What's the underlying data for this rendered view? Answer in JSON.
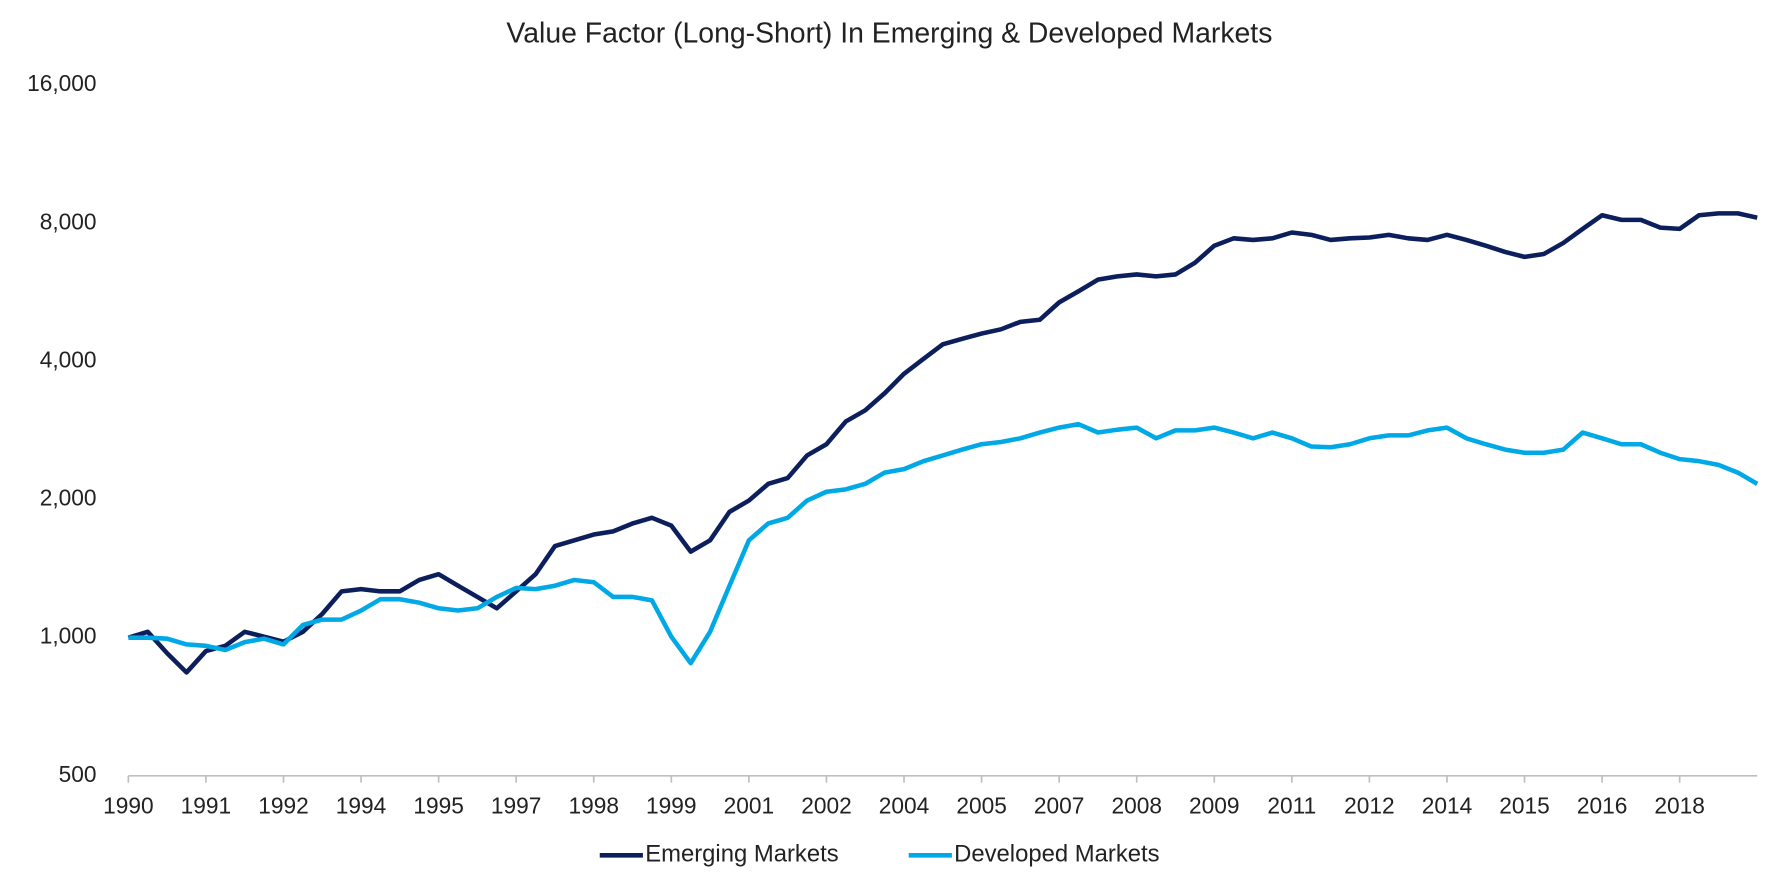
{
  "chart_data": {
    "type": "line",
    "title": "Value Factor (Long-Short) In Emerging & Developed Markets",
    "categories": [
      "1990",
      null,
      null,
      null,
      "1991",
      null,
      null,
      null,
      "1992",
      null,
      null,
      null,
      "1994",
      null,
      null,
      null,
      "1995",
      null,
      null,
      null,
      "1997",
      null,
      null,
      null,
      "1998",
      null,
      null,
      null,
      "1999",
      null,
      null,
      null,
      "2001",
      null,
      null,
      null,
      "2002",
      null,
      null,
      null,
      "2004",
      null,
      null,
      null,
      "2005",
      null,
      null,
      null,
      "2007",
      null,
      null,
      null,
      "2008",
      null,
      null,
      null,
      "2009",
      null,
      null,
      null,
      "2011",
      null,
      null,
      null,
      "2012",
      null,
      null,
      null,
      "2014",
      null,
      null,
      null,
      "2015",
      null,
      null,
      null,
      "2016",
      null,
      null,
      null,
      "2018",
      null,
      null,
      null,
      null
    ],
    "series": [
      {
        "name": "Emerging Markets",
        "color": "#0c1f5c",
        "values": [
          1000,
          1030,
          925,
          840,
          935,
          960,
          1030,
          1005,
          980,
          1030,
          1127,
          1262,
          1276,
          1262,
          1262,
          1336,
          1375,
          1298,
          1227,
          1159,
          1262,
          1375,
          1584,
          1630,
          1678,
          1705,
          1774,
          1825,
          1755,
          1540,
          1630,
          1880,
          1990,
          2164,
          2228,
          2496,
          2640,
          2960,
          3130,
          3410,
          3760,
          4050,
          4360,
          4480,
          4600,
          4700,
          4880,
          4930,
          5380,
          5690,
          6030,
          6130,
          6190,
          6130,
          6190,
          6560,
          7150,
          7420,
          7360,
          7420,
          7640,
          7550,
          7360,
          7420,
          7450,
          7550,
          7420,
          7360,
          7550,
          7360,
          7150,
          6930,
          6760,
          6860,
          7250,
          7780,
          8330,
          8140,
          8140,
          7830,
          7780,
          8330,
          8410,
          8410,
          8230
        ]
      },
      {
        "name": "Developed Markets",
        "color": "#00a9e6",
        "values": [
          1000,
          1000,
          995,
          967,
          960,
          940,
          978,
          995,
          967,
          1066,
          1095,
          1095,
          1146,
          1213,
          1213,
          1192,
          1159,
          1146,
          1159,
          1227,
          1284,
          1276,
          1298,
          1336,
          1321,
          1227,
          1227,
          1206,
          1005,
          880,
          1030,
          1298,
          1630,
          1774,
          1825,
          1990,
          2080,
          2105,
          2164,
          2290,
          2330,
          2425,
          2496,
          2570,
          2640,
          2670,
          2720,
          2800,
          2870,
          2920,
          2800,
          2840,
          2870,
          2720,
          2830,
          2830,
          2870,
          2800,
          2720,
          2800,
          2720,
          2610,
          2600,
          2640,
          2720,
          2760,
          2760,
          2830,
          2870,
          2720,
          2640,
          2570,
          2530,
          2530,
          2570,
          2800,
          2720,
          2640,
          2640,
          2530,
          2450,
          2425,
          2380,
          2290,
          2164
        ]
      }
    ],
    "log_y": true,
    "ylim": [
      500,
      16000
    ],
    "yticks": [
      500,
      {
        "value": 1000,
        "label": "1,000"
      },
      {
        "value": 2000,
        "label": "2,000"
      },
      {
        "value": 4000,
        "label": "4,000"
      },
      {
        "value": 8000,
        "label": "8,000"
      },
      {
        "value": 16000,
        "label": "16,000"
      }
    ],
    "grid": false,
    "legend": "bottom"
  }
}
